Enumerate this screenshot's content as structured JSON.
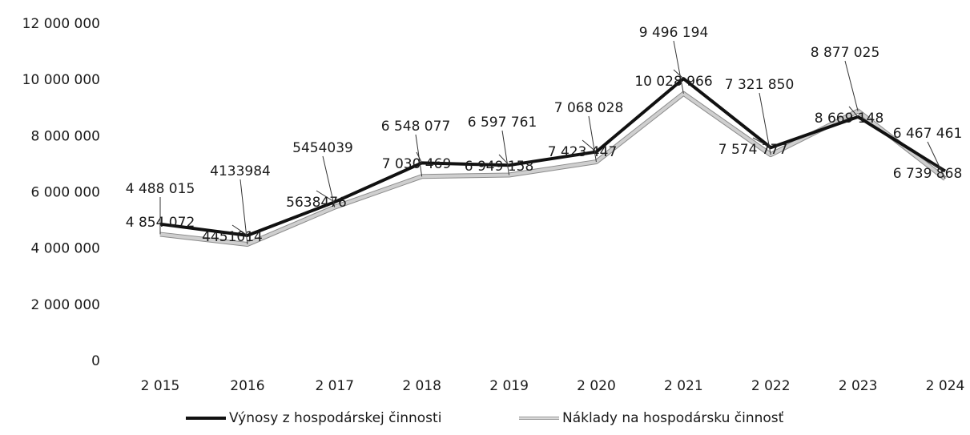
{
  "chart_data": {
    "type": "line",
    "categories": [
      "2 015",
      "2016",
      "2 017",
      "2 018",
      "2 019",
      "2 020",
      "2 021",
      "2 022",
      "2 023",
      "2 024"
    ],
    "ylim": [
      0,
      12000000
    ],
    "yticks": [
      0,
      2000000,
      4000000,
      6000000,
      8000000,
      10000000,
      12000000
    ],
    "ytick_labels": [
      "0",
      "2 000 000",
      "4 000 000",
      "6 000 000",
      "8 000 000",
      "10 000 000",
      "12 000 000"
    ],
    "grid": false,
    "legend_position": "bottom",
    "series": [
      {
        "name": "Výnosy z hospodárskej činnosti",
        "color": "#111111",
        "values": [
          4854072,
          4451014,
          5638476,
          7030469,
          6949158,
          7423447,
          10028966,
          7574777,
          8669148,
          6739868
        ],
        "labels": [
          "4 854 072",
          "4451014",
          "5638476",
          "7 030 469",
          "6 949 158",
          "7 423 447",
          "10 028 966",
          "7 574 777",
          "8 669 148",
          "6 739 868"
        ]
      },
      {
        "name": "Náklady na hospodársku činnosť",
        "color": "#cfcfcf",
        "values": [
          4488015,
          4133984,
          5454039,
          6548077,
          6597761,
          7068028,
          9496194,
          7321850,
          8877025,
          6467461
        ],
        "labels": [
          "4 488 015",
          "4133984",
          "5454039",
          "6 548 077",
          "6 597 761",
          "7 068 028",
          "9 496 194",
          "7 321 850",
          "8 877 025",
          "6 467 461"
        ]
      }
    ]
  }
}
